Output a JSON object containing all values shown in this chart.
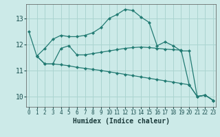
{
  "title": "",
  "xlabel": "Humidex (Indice chaleur)",
  "bg_color": "#cceae8",
  "grid_color": "#aad4d0",
  "line_color": "#217a72",
  "x_ticks": [
    0,
    1,
    2,
    3,
    4,
    5,
    6,
    7,
    8,
    9,
    10,
    11,
    12,
    13,
    14,
    15,
    16,
    17,
    18,
    19,
    20,
    21,
    22,
    23
  ],
  "y_ticks": [
    10,
    11,
    12,
    13
  ],
  "ylim": [
    9.6,
    13.55
  ],
  "xlim": [
    -0.3,
    23.3
  ],
  "lines": [
    {
      "x": [
        0,
        1,
        2,
        3,
        4,
        5,
        6,
        7,
        8,
        9,
        10,
        11,
        12,
        13,
        14,
        15,
        16,
        17,
        18,
        19,
        20,
        21,
        22,
        23
      ],
      "y": [
        12.5,
        11.55,
        11.85,
        12.2,
        12.35,
        12.3,
        12.3,
        12.35,
        12.45,
        12.65,
        13.0,
        13.15,
        13.35,
        13.3,
        13.05,
        12.85,
        11.95,
        12.1,
        11.95,
        11.75,
        11.75,
        10.0,
        10.05,
        9.85
      ]
    },
    {
      "x": [
        1,
        2,
        3,
        4,
        5,
        6,
        7,
        8,
        9,
        10,
        11,
        12,
        13,
        14,
        15,
        16,
        17,
        18,
        19,
        20,
        21,
        22,
        23
      ],
      "y": [
        11.55,
        11.25,
        11.25,
        11.85,
        11.95,
        11.6,
        11.6,
        11.65,
        11.7,
        11.75,
        11.8,
        11.85,
        11.88,
        11.9,
        11.88,
        11.85,
        11.82,
        11.8,
        11.78,
        10.45,
        10.0,
        10.05,
        9.85
      ]
    },
    {
      "x": [
        1,
        2,
        3,
        4,
        5,
        6,
        7,
        8,
        9,
        10,
        11,
        12,
        13,
        14,
        15,
        16,
        17,
        18,
        19,
        20,
        21,
        22,
        23
      ],
      "y": [
        11.55,
        11.25,
        11.25,
        11.22,
        11.18,
        11.12,
        11.08,
        11.04,
        11.0,
        10.95,
        10.9,
        10.85,
        10.8,
        10.75,
        10.7,
        10.65,
        10.6,
        10.55,
        10.5,
        10.45,
        10.0,
        10.05,
        9.85
      ]
    }
  ]
}
